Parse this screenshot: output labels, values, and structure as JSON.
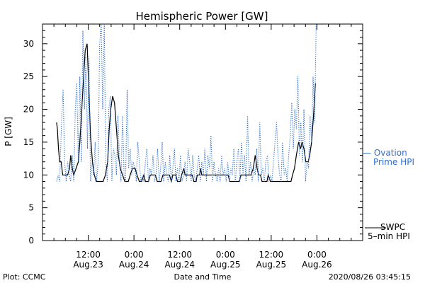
{
  "chart_data": {
    "type": "line",
    "title": "Hemispheric Power [GW]",
    "xlabel": "Date and Time",
    "ylabel": "P [GW]",
    "ylim": [
      0,
      33
    ],
    "yticks": [
      0,
      5,
      10,
      15,
      20,
      25,
      30
    ],
    "xlim": [
      0,
      84
    ],
    "xticks": [
      {
        "x": 12,
        "time": "12:00",
        "date": "Aug.23"
      },
      {
        "x": 24,
        "time": "0:00",
        "date": "Aug.24"
      },
      {
        "x": 36,
        "time": "12:00",
        "date": "Aug.24"
      },
      {
        "x": 48,
        "time": "0:00",
        "date": "Aug.25"
      },
      {
        "x": 60,
        "time": "12:00",
        "date": "Aug.25"
      },
      {
        "x": 72,
        "time": "0:00",
        "date": "Aug.26"
      }
    ],
    "grid": false,
    "legend": "right",
    "series": [
      {
        "name": "SWPC 5-min HPI",
        "color": "#000000",
        "style": "solid",
        "points": [
          [
            3.7,
            18
          ],
          [
            3.9,
            17
          ],
          [
            4.2,
            14
          ],
          [
            4.5,
            12
          ],
          [
            4.9,
            12
          ],
          [
            5.3,
            10
          ],
          [
            6.2,
            10
          ],
          [
            6.6,
            10
          ],
          [
            7.1,
            11
          ],
          [
            7.4,
            13
          ],
          [
            7.8,
            11
          ],
          [
            8.2,
            10
          ],
          [
            8.8,
            11
          ],
          [
            9.4,
            12
          ],
          [
            9.8,
            15
          ],
          [
            10.3,
            20
          ],
          [
            10.8,
            25
          ],
          [
            11.2,
            29
          ],
          [
            11.7,
            30
          ],
          [
            12.1,
            24
          ],
          [
            12.6,
            16
          ],
          [
            13.1,
            12
          ],
          [
            13.6,
            10
          ],
          [
            14.1,
            9
          ],
          [
            15.9,
            9
          ],
          [
            16.5,
            10
          ],
          [
            17.1,
            12
          ],
          [
            17.5,
            17
          ],
          [
            17.9,
            20
          ],
          [
            18.4,
            22
          ],
          [
            18.9,
            21
          ],
          [
            19.4,
            17
          ],
          [
            19.9,
            13
          ],
          [
            20.4,
            11
          ],
          [
            21.0,
            10
          ],
          [
            21.6,
            9
          ],
          [
            22.5,
            9
          ],
          [
            23.0,
            10
          ],
          [
            23.6,
            11
          ],
          [
            24.3,
            11
          ],
          [
            24.8,
            10
          ],
          [
            25.4,
            9
          ],
          [
            26.0,
            9
          ],
          [
            26.6,
            10
          ],
          [
            27.0,
            9
          ],
          [
            27.8,
            9
          ],
          [
            28.3,
            10
          ],
          [
            29.2,
            10
          ],
          [
            29.6,
            10
          ],
          [
            30.1,
            9
          ],
          [
            31.1,
            9
          ],
          [
            31.6,
            10
          ],
          [
            33.3,
            10
          ],
          [
            33.8,
            9
          ],
          [
            34.2,
            10
          ],
          [
            35.0,
            10
          ],
          [
            35.4,
            9
          ],
          [
            36.1,
            9
          ],
          [
            36.5,
            10
          ],
          [
            37.1,
            11
          ],
          [
            37.4,
            10
          ],
          [
            38.1,
            10
          ],
          [
            39.3,
            10
          ],
          [
            39.7,
            9
          ],
          [
            40.3,
            9
          ],
          [
            40.6,
            10
          ],
          [
            41.2,
            10
          ],
          [
            41.5,
            11
          ],
          [
            41.8,
            10
          ],
          [
            43.3,
            10
          ],
          [
            47.9,
            10
          ],
          [
            48.7,
            10
          ],
          [
            49.1,
            9
          ],
          [
            51.6,
            9
          ],
          [
            52.1,
            10
          ],
          [
            54.7,
            10
          ],
          [
            55.3,
            11
          ],
          [
            55.8,
            13
          ],
          [
            56.3,
            11
          ],
          [
            56.7,
            10
          ],
          [
            57.2,
            10
          ],
          [
            57.6,
            9
          ],
          [
            58.9,
            9
          ],
          [
            59.2,
            10
          ],
          [
            59.8,
            9
          ],
          [
            65.2,
            9
          ],
          [
            65.6,
            10
          ],
          [
            66.1,
            11
          ],
          [
            66.6,
            13
          ],
          [
            67.2,
            15
          ],
          [
            67.7,
            14
          ],
          [
            68.1,
            15
          ],
          [
            68.6,
            14
          ],
          [
            69.1,
            12
          ],
          [
            69.7,
            12
          ],
          [
            70.1,
            13
          ],
          [
            70.6,
            15
          ],
          [
            71.1,
            19
          ],
          [
            71.6,
            24
          ]
        ]
      },
      {
        "name": "Ovation Prime HPI",
        "color": "#2f6fd6",
        "style": "dotted",
        "points": [
          [
            3.7,
            9
          ],
          [
            4.1,
            10
          ],
          [
            4.5,
            9
          ],
          [
            5.0,
            18
          ],
          [
            5.4,
            23
          ],
          [
            5.8,
            12
          ],
          [
            6.2,
            9
          ],
          [
            6.6,
            12
          ],
          [
            7.0,
            10
          ],
          [
            7.4,
            9
          ],
          [
            7.8,
            13
          ],
          [
            8.2,
            9
          ],
          [
            8.6,
            20
          ],
          [
            9.0,
            24
          ],
          [
            9.4,
            12
          ],
          [
            9.8,
            25
          ],
          [
            10.2,
            12
          ],
          [
            10.6,
            32
          ],
          [
            11.0,
            20
          ],
          [
            11.4,
            28
          ],
          [
            11.8,
            14
          ],
          [
            12.2,
            28
          ],
          [
            12.6,
            9
          ],
          [
            13.0,
            12
          ],
          [
            13.4,
            10
          ],
          [
            13.8,
            15
          ],
          [
            14.2,
            9
          ],
          [
            14.6,
            12
          ],
          [
            15.0,
            30
          ],
          [
            15.4,
            33
          ],
          [
            15.8,
            20
          ],
          [
            16.2,
            33
          ],
          [
            16.6,
            12
          ],
          [
            17.0,
            9
          ],
          [
            17.4,
            20
          ],
          [
            17.8,
            22
          ],
          [
            18.2,
            9
          ],
          [
            18.6,
            14
          ],
          [
            19.0,
            13
          ],
          [
            19.4,
            10
          ],
          [
            19.8,
            19
          ],
          [
            20.2,
            12
          ],
          [
            20.6,
            9
          ],
          [
            21.0,
            19
          ],
          [
            21.4,
            10
          ],
          [
            21.8,
            9
          ],
          [
            22.2,
            23
          ],
          [
            22.6,
            11
          ],
          [
            23.0,
            14
          ],
          [
            23.4,
            10
          ],
          [
            23.8,
            12
          ],
          [
            24.2,
            11
          ],
          [
            24.6,
            9
          ],
          [
            25.0,
            15
          ],
          [
            25.4,
            12
          ],
          [
            25.8,
            9
          ],
          [
            26.2,
            10
          ],
          [
            26.6,
            9
          ],
          [
            27.0,
            12
          ],
          [
            27.4,
            14
          ],
          [
            27.8,
            9
          ],
          [
            28.2,
            11
          ],
          [
            28.6,
            10
          ],
          [
            29.0,
            13
          ],
          [
            29.4,
            9
          ],
          [
            29.8,
            10
          ],
          [
            30.2,
            14
          ],
          [
            30.6,
            9
          ],
          [
            31.0,
            11
          ],
          [
            31.4,
            15
          ],
          [
            31.8,
            9
          ],
          [
            32.2,
            12
          ],
          [
            32.6,
            10
          ],
          [
            33.0,
            9
          ],
          [
            33.4,
            13
          ],
          [
            33.8,
            9
          ],
          [
            34.2,
            11
          ],
          [
            34.6,
            14
          ],
          [
            35.0,
            9
          ],
          [
            35.4,
            11
          ],
          [
            35.8,
            9
          ],
          [
            36.2,
            13
          ],
          [
            36.6,
            9
          ],
          [
            37.0,
            10
          ],
          [
            37.4,
            12
          ],
          [
            37.8,
            9
          ],
          [
            38.2,
            14
          ],
          [
            38.6,
            12
          ],
          [
            39.0,
            9
          ],
          [
            39.4,
            13
          ],
          [
            39.8,
            10
          ],
          [
            40.2,
            9
          ],
          [
            40.6,
            11
          ],
          [
            41.0,
            13
          ],
          [
            41.4,
            9
          ],
          [
            41.8,
            12
          ],
          [
            42.2,
            10
          ],
          [
            42.6,
            14
          ],
          [
            43.0,
            9
          ],
          [
            43.4,
            13
          ],
          [
            43.8,
            11
          ],
          [
            44.2,
            16
          ],
          [
            44.6,
            9
          ],
          [
            45.0,
            12
          ],
          [
            45.4,
            10
          ],
          [
            45.8,
            9
          ],
          [
            46.2,
            11
          ],
          [
            46.6,
            9
          ],
          [
            47.0,
            13
          ],
          [
            47.4,
            10
          ],
          [
            47.8,
            11
          ],
          [
            48.2,
            9
          ],
          [
            48.6,
            12
          ],
          [
            49.0,
            9
          ],
          [
            49.4,
            11
          ],
          [
            49.8,
            10
          ],
          [
            50.2,
            14
          ],
          [
            50.6,
            9
          ],
          [
            51.0,
            12
          ],
          [
            51.4,
            14
          ],
          [
            51.8,
            9
          ],
          [
            52.2,
            15
          ],
          [
            52.6,
            10
          ],
          [
            53.0,
            13
          ],
          [
            53.4,
            9
          ],
          [
            53.8,
            19
          ],
          [
            54.2,
            10
          ],
          [
            54.6,
            12
          ],
          [
            55.0,
            9
          ],
          [
            55.4,
            11
          ],
          [
            55.8,
            10
          ],
          [
            56.2,
            14
          ],
          [
            56.6,
            9
          ],
          [
            57.0,
            18
          ],
          [
            57.4,
            10
          ],
          [
            57.8,
            11
          ],
          [
            58.2,
            9
          ],
          [
            58.6,
            12
          ],
          [
            59.0,
            13
          ],
          [
            59.4,
            9
          ],
          [
            59.8,
            10
          ],
          [
            60.2,
            9
          ],
          [
            60.6,
            12
          ],
          [
            61.0,
            15
          ],
          [
            61.4,
            18
          ],
          [
            61.8,
            13
          ],
          [
            62.2,
            10
          ],
          [
            62.6,
            9
          ],
          [
            63.0,
            15
          ],
          [
            63.4,
            10
          ],
          [
            63.8,
            11
          ],
          [
            64.2,
            9
          ],
          [
            64.6,
            13
          ],
          [
            65.0,
            16
          ],
          [
            65.4,
            21
          ],
          [
            65.8,
            14
          ],
          [
            66.2,
            20
          ],
          [
            66.6,
            17
          ],
          [
            67.0,
            25
          ],
          [
            67.4,
            13
          ],
          [
            67.8,
            18
          ],
          [
            68.2,
            12
          ],
          [
            68.6,
            20
          ],
          [
            69.0,
            9
          ],
          [
            69.4,
            12
          ],
          [
            69.8,
            11
          ],
          [
            70.2,
            19
          ],
          [
            70.6,
            15
          ],
          [
            71.0,
            25
          ],
          [
            71.4,
            18
          ],
          [
            71.8,
            33
          ]
        ]
      }
    ],
    "legend_entries": [
      {
        "series": "Ovation Prime HPI",
        "line1": "— Ovation",
        "line2": "Prime HPI"
      },
      {
        "series": "SWPC 5-min HPI",
        "line1": "SWPC",
        "line2": "5–min HPI"
      }
    ],
    "footer": {
      "left": "Plot: CCMC",
      "right": "2020/08/26 03:45:15"
    }
  }
}
